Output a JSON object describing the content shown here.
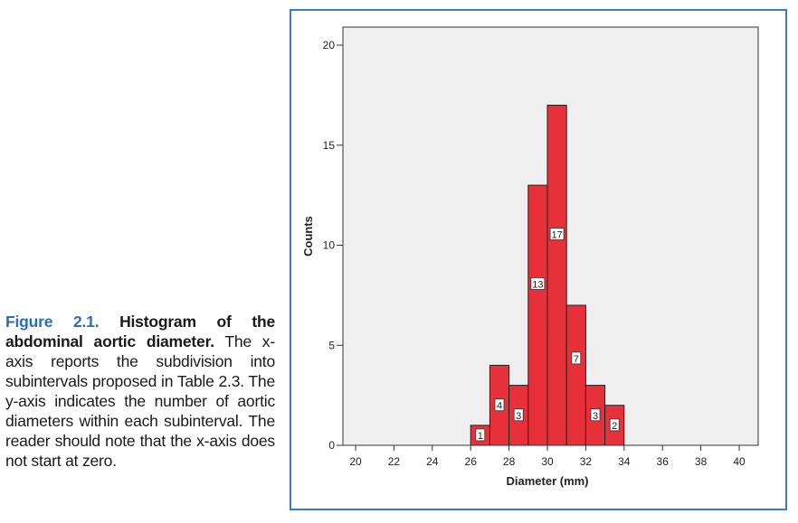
{
  "caption": {
    "label": "Figure 2.1.",
    "title": "Histogram of the abdominal aortic diameter.",
    "body": "The x-axis reports the subdivision into subintervals proposed in Table 2.3. The y-axis indicates the number of aortic diameters within each subinterval. The reader should note that the x-axis does not start at zero."
  },
  "chart_data": {
    "type": "bar",
    "title": "",
    "xlabel": "Diameter (mm)",
    "ylabel": "Counts",
    "xlim": [
      19,
      41
    ],
    "ylim": [
      0,
      20
    ],
    "xticks": [
      20,
      22,
      24,
      26,
      28,
      30,
      32,
      34,
      36,
      38,
      40
    ],
    "yticks": [
      0,
      5,
      10,
      15,
      20
    ],
    "bins": [
      {
        "start": 26,
        "end": 27,
        "count": 1
      },
      {
        "start": 27,
        "end": 28,
        "count": 4
      },
      {
        "start": 28,
        "end": 29,
        "count": 3
      },
      {
        "start": 29,
        "end": 30,
        "count": 13
      },
      {
        "start": 30,
        "end": 31,
        "count": 17
      },
      {
        "start": 31,
        "end": 32,
        "count": 7
      },
      {
        "start": 32,
        "end": 33,
        "count": 3
      },
      {
        "start": 33,
        "end": 34,
        "count": 2
      }
    ],
    "bar_color": "#e8303a",
    "plot_background": "#efefef",
    "grid": false
  }
}
